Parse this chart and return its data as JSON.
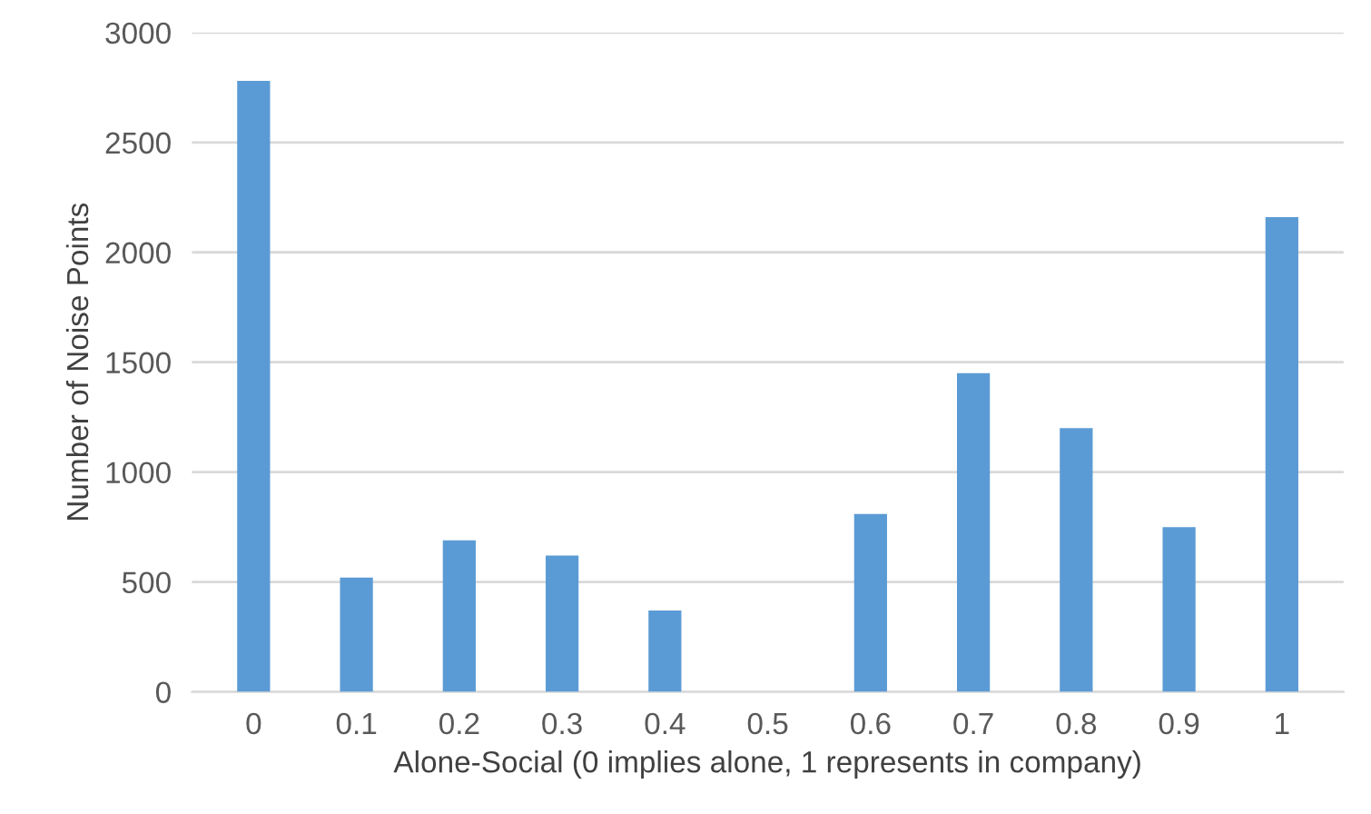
{
  "chart_data": {
    "type": "bar",
    "xlabel": "Alone-Social (0 implies alone, 1 represents in company)",
    "ylabel": "Number of Noise Points",
    "categories": [
      "0",
      "0.1",
      "0.2",
      "0.3",
      "0.4",
      "0.5",
      "0.6",
      "0.7",
      "0.8",
      "0.9",
      "1"
    ],
    "values": [
      2780,
      520,
      690,
      620,
      370,
      0,
      810,
      1450,
      1200,
      750,
      2160
    ],
    "color": "#5b9bd5",
    "ylim": [
      0,
      3000
    ],
    "yticks": [
      0,
      500,
      1000,
      1500,
      2000,
      2500,
      3000
    ],
    "grid": "y",
    "legend": false
  }
}
